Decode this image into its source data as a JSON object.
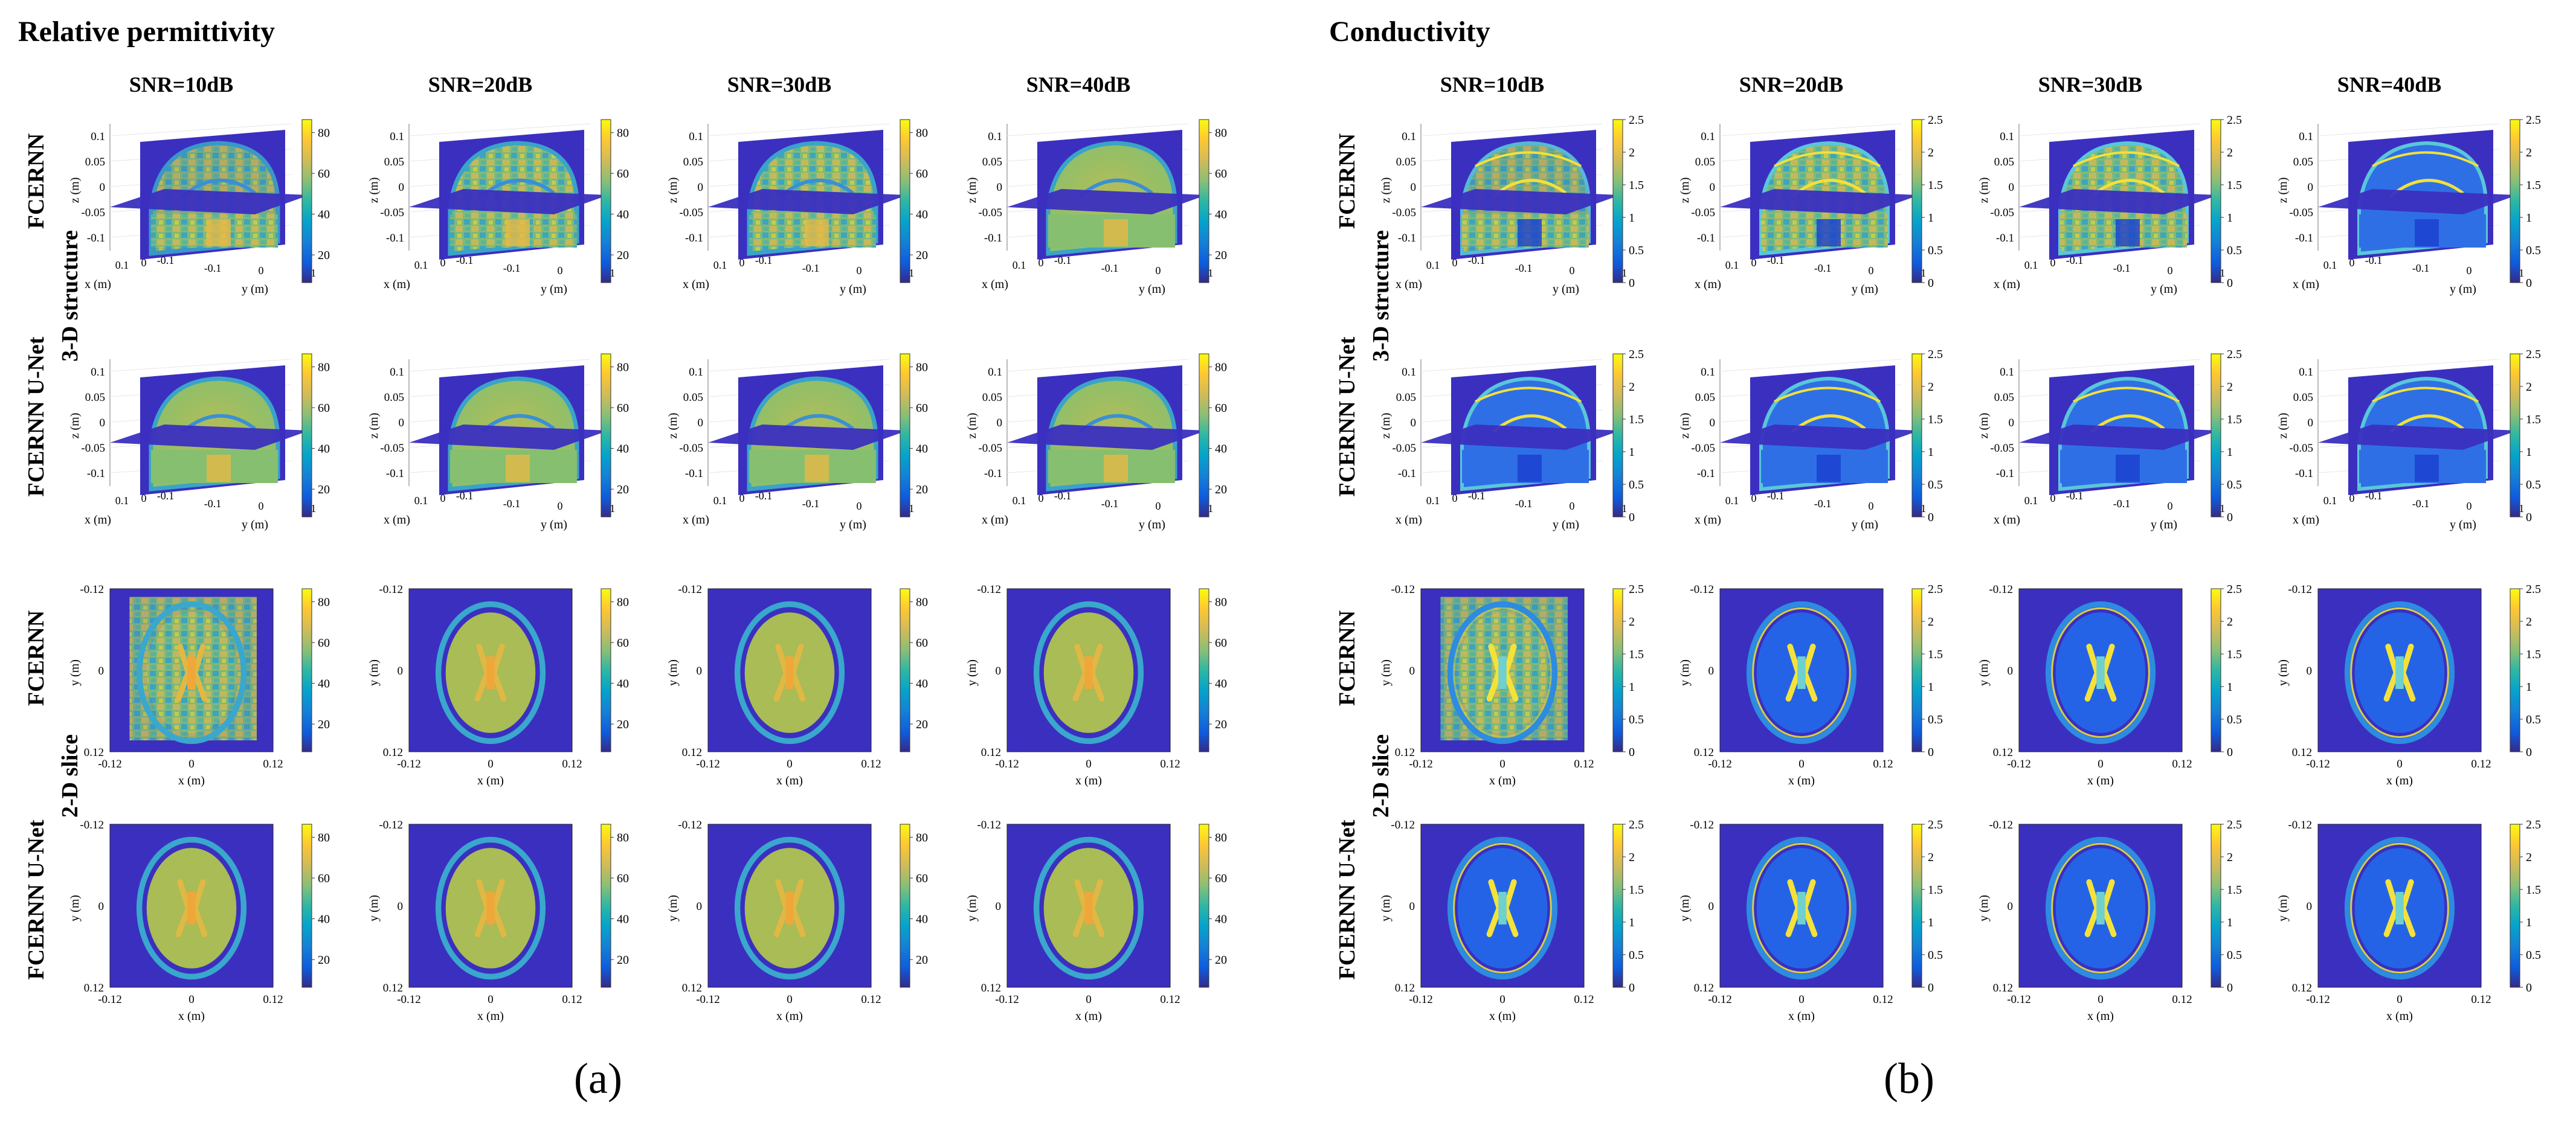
{
  "figure": {
    "panels": [
      {
        "id": "a",
        "title": "Relative permittivity",
        "caption": "(a)",
        "columns": [
          "SNR=10dB",
          "SNR=20dB",
          "SNR=30dB",
          "SNR=40dB"
        ],
        "row_groups": [
          "3-D structure",
          "2-D slice"
        ],
        "row_labels": [
          "FCERNN",
          "FCERNN U-Net",
          "FCERNN",
          "FCERNN U-Net"
        ],
        "colorbar_ticks": [
          "80",
          "60",
          "40",
          "20"
        ],
        "axis3d": {
          "z_ticks": [
            "0.1",
            "0.05",
            "0",
            "-0.05",
            "-0.1"
          ],
          "x_ticks": [
            "-0.1",
            "0",
            "0.1"
          ],
          "y_ticks": [
            "-0.1",
            "0",
            "0.1"
          ],
          "z_label": "z (m)",
          "x_label": "x (m)",
          "y_label": "y (m)"
        },
        "axis2d": {
          "y_ticks": [
            "-0.12",
            "0",
            "0.12"
          ],
          "x_ticks": [
            "-0.12",
            "0",
            "0.12"
          ],
          "y_label": "y (m)",
          "x_label": "x (m)"
        }
      },
      {
        "id": "b",
        "title": "Conductivity",
        "caption": "(b)",
        "columns": [
          "SNR=10dB",
          "SNR=20dB",
          "SNR=30dB",
          "SNR=40dB"
        ],
        "row_groups": [
          "3-D structure",
          "2-D slice"
        ],
        "row_labels": [
          "FCERNN",
          "FCERNN U-Net",
          "FCERNN",
          "FCERNN U-Net"
        ],
        "colorbar_ticks": [
          "2.5",
          "2",
          "1.5",
          "1",
          "0.5",
          "0"
        ],
        "axis3d": {
          "z_ticks": [
            "0.1",
            "0.05",
            "0",
            "-0.05",
            "-0.1"
          ],
          "x_ticks": [
            "-0.1",
            "0",
            "0.1"
          ],
          "y_ticks": [
            "-0.1",
            "0",
            "0.1"
          ],
          "z_label": "z (m)",
          "x_label": "x (m)",
          "y_label": "y (m)"
        },
        "axis2d": {
          "y_ticks": [
            "-0.12",
            "0",
            "0.12"
          ],
          "x_ticks": [
            "-0.12",
            "0",
            "0.12"
          ],
          "y_label": "y (m)",
          "x_label": "x (m)"
        }
      }
    ],
    "colors": {
      "background_map": "#3b2fc0",
      "parula": [
        "#352a87",
        "#0f5cdd",
        "#1481d6",
        "#06a4ca",
        "#2eb7a4",
        "#87bf77",
        "#d1bb59",
        "#fec832",
        "#f9fb0e"
      ]
    }
  }
}
